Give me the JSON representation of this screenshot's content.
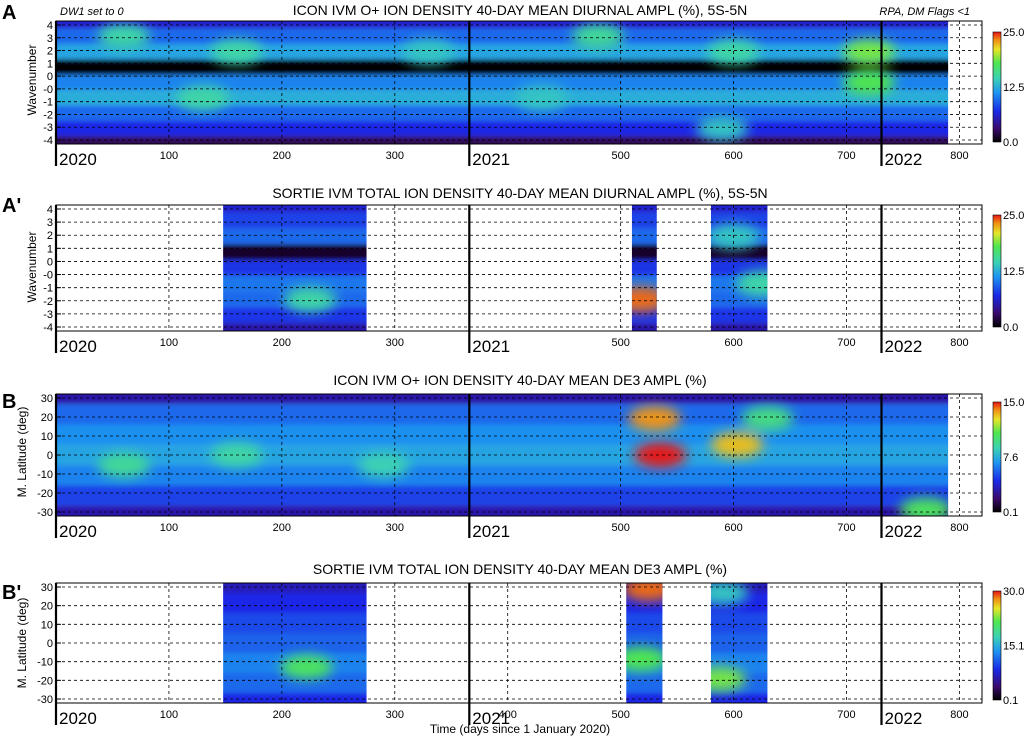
{
  "figure_xlabel": "Time (days since 1 January 2020)",
  "chart_data": [
    {
      "panel_label": "A",
      "type": "heatmap",
      "title": "ICON IVM O+ ION DENSITY 40-DAY MEAN DIURNAL AMPL (%), 5S-5N",
      "left_note": "DW1 set to 0",
      "right_note": "RPA, DM Flags <1",
      "ylabel": "Wavenumber",
      "xlim": [
        0,
        820
      ],
      "ylim": [
        -4,
        4
      ],
      "y_ticks": [
        "4",
        "3",
        "2",
        "1",
        "0",
        "-0",
        "-1",
        "-2",
        "-3",
        "-4"
      ],
      "x_ticks": [
        100,
        200,
        300,
        500,
        600,
        700,
        800
      ],
      "year_labels": [
        "2020",
        "2021",
        "2022"
      ],
      "year_boundaries": [
        0,
        366,
        731
      ],
      "colorbar": {
        "min": 0.0,
        "mid": 12.5,
        "max": 25.0,
        "labels": [
          "25.0",
          "12.5",
          "0.0"
        ]
      },
      "data_coverage": [
        [
          0,
          790
        ]
      ],
      "band_profile": [
        {
          "wavenumber": 4,
          "level": 0.25
        },
        {
          "wavenumber": 3,
          "level": 0.38
        },
        {
          "wavenumber": 2,
          "level": 0.48
        },
        {
          "wavenumber": 1,
          "level": 0.0
        },
        {
          "wavenumber": 0,
          "level": 0.42
        },
        {
          "wavenumber": -1,
          "level": 0.5
        },
        {
          "wavenumber": -2,
          "level": 0.38
        },
        {
          "wavenumber": -3,
          "level": 0.28
        },
        {
          "wavenumber": -4,
          "level": 0.1
        }
      ],
      "hotspots": [
        {
          "day": 60,
          "y": 3,
          "level": 0.6
        },
        {
          "day": 160,
          "y": 2,
          "level": 0.6
        },
        {
          "day": 330,
          "y": 2,
          "level": 0.55
        },
        {
          "day": 480,
          "y": 3,
          "level": 0.62
        },
        {
          "day": 600,
          "y": 2,
          "level": 0.6
        },
        {
          "day": 720,
          "y": 2,
          "level": 0.75
        },
        {
          "day": 720,
          "y": 0,
          "level": 0.72
        },
        {
          "day": 130,
          "y": -1,
          "level": 0.6
        },
        {
          "day": 590,
          "y": -3,
          "level": 0.55
        },
        {
          "day": 430,
          "y": -1,
          "level": 0.55
        }
      ]
    },
    {
      "panel_label": "A'",
      "type": "heatmap",
      "title": "SORTIE IVM TOTAL ION DENSITY 40-DAY MEAN DIURNAL AMPL (%), 5S-5N",
      "ylabel": "Wavenumber",
      "xlim": [
        0,
        820
      ],
      "ylim": [
        -4,
        4
      ],
      "y_ticks": [
        "4",
        "3",
        "2",
        "1",
        "0",
        "-0",
        "-1",
        "-2",
        "-3",
        "-4"
      ],
      "x_ticks": [
        100,
        200,
        300,
        500,
        600,
        700,
        800
      ],
      "year_labels": [
        "2020",
        "2021",
        "2022"
      ],
      "year_boundaries": [
        0,
        366,
        731
      ],
      "colorbar": {
        "min": 0.0,
        "mid": 12.5,
        "max": 25.0,
        "labels": [
          "25.0",
          "12.5",
          "0.0"
        ]
      },
      "data_coverage": [
        [
          148,
          275
        ],
        [
          510,
          532
        ],
        [
          580,
          630
        ]
      ],
      "band_profile": [
        {
          "wavenumber": 4,
          "level": 0.25
        },
        {
          "wavenumber": 3,
          "level": 0.32
        },
        {
          "wavenumber": 2,
          "level": 0.38
        },
        {
          "wavenumber": 1,
          "level": 0.05
        },
        {
          "wavenumber": 0,
          "level": 0.3
        },
        {
          "wavenumber": -1,
          "level": 0.4
        },
        {
          "wavenumber": -2,
          "level": 0.38
        },
        {
          "wavenumber": -3,
          "level": 0.3
        },
        {
          "wavenumber": -4,
          "level": 0.2
        }
      ],
      "hotspots": [
        {
          "day": 518,
          "y": -2,
          "level": 0.95
        },
        {
          "day": 225,
          "y": -2,
          "level": 0.6
        },
        {
          "day": 600,
          "y": 2,
          "level": 0.55
        },
        {
          "day": 625,
          "y": -1,
          "level": 0.6
        }
      ]
    },
    {
      "panel_label": "B",
      "type": "heatmap",
      "title": "ICON IVM O+ ION DENSITY 40-DAY MEAN DE3 AMPL (%)",
      "ylabel": "M. Latitude (deg)",
      "xlim": [
        0,
        820
      ],
      "ylim": [
        -30,
        30
      ],
      "y_ticks": [
        "30",
        "20",
        "10",
        "0",
        "-10",
        "-20",
        "-30"
      ],
      "x_ticks": [
        100,
        200,
        300,
        500,
        600,
        700,
        800
      ],
      "year_labels": [
        "2020",
        "2021",
        "2022"
      ],
      "year_boundaries": [
        0,
        366,
        731
      ],
      "colorbar": {
        "min": 0.1,
        "mid": 7.6,
        "max": 15.0,
        "labels": [
          "15.0",
          "7.6",
          "0.1"
        ]
      },
      "data_coverage": [
        [
          0,
          790
        ]
      ],
      "band_profile": [
        {
          "latitude": 30,
          "level": 0.2
        },
        {
          "latitude": 20,
          "level": 0.38
        },
        {
          "latitude": 10,
          "level": 0.44
        },
        {
          "latitude": 0,
          "level": 0.48
        },
        {
          "latitude": -10,
          "level": 0.42
        },
        {
          "latitude": -20,
          "level": 0.32
        },
        {
          "latitude": -30,
          "level": 0.2
        }
      ],
      "hotspots": [
        {
          "day": 535,
          "y": 0,
          "level": 1.0
        },
        {
          "day": 530,
          "y": 18,
          "level": 0.92
        },
        {
          "day": 603,
          "y": 5,
          "level": 0.88
        },
        {
          "day": 60,
          "y": -5,
          "level": 0.62
        },
        {
          "day": 160,
          "y": 0,
          "level": 0.6
        },
        {
          "day": 290,
          "y": -5,
          "level": 0.58
        },
        {
          "day": 630,
          "y": 18,
          "level": 0.65
        },
        {
          "day": 770,
          "y": -27,
          "level": 0.7
        }
      ]
    },
    {
      "panel_label": "B'",
      "type": "heatmap",
      "title": "SORTIE IVM TOTAL ION DENSITY 40-DAY MEAN DE3 AMPL (%)",
      "ylabel": "M. Latitude (deg)",
      "xlim": [
        0,
        820
      ],
      "ylim": [
        -30,
        30
      ],
      "y_ticks": [
        "30",
        "20",
        "10",
        "0",
        "-10",
        "-20",
        "-30"
      ],
      "x_ticks": [
        100,
        200,
        300,
        400,
        500,
        600,
        700,
        800
      ],
      "year_labels": [
        "2020",
        "2021",
        "2022"
      ],
      "year_boundaries": [
        0,
        366,
        731
      ],
      "colorbar": {
        "min": 0.1,
        "mid": 15.1,
        "max": 30.0,
        "labels": [
          "30.0",
          "15.1",
          "0.1"
        ]
      },
      "data_coverage": [
        [
          148,
          275
        ],
        [
          505,
          537
        ],
        [
          580,
          630
        ]
      ],
      "band_profile": [
        {
          "latitude": 30,
          "level": 0.22
        },
        {
          "latitude": 20,
          "level": 0.28
        },
        {
          "latitude": 10,
          "level": 0.33
        },
        {
          "latitude": 0,
          "level": 0.37
        },
        {
          "latitude": -10,
          "level": 0.42
        },
        {
          "latitude": -20,
          "level": 0.38
        },
        {
          "latitude": -30,
          "level": 0.28
        }
      ],
      "hotspots": [
        {
          "day": 222,
          "y": -12,
          "level": 0.7
        },
        {
          "day": 518,
          "y": -8,
          "level": 0.72
        },
        {
          "day": 525,
          "y": 27,
          "level": 0.95
        },
        {
          "day": 588,
          "y": -18,
          "level": 0.75
        },
        {
          "day": 590,
          "y": 25,
          "level": 0.55
        }
      ]
    }
  ]
}
